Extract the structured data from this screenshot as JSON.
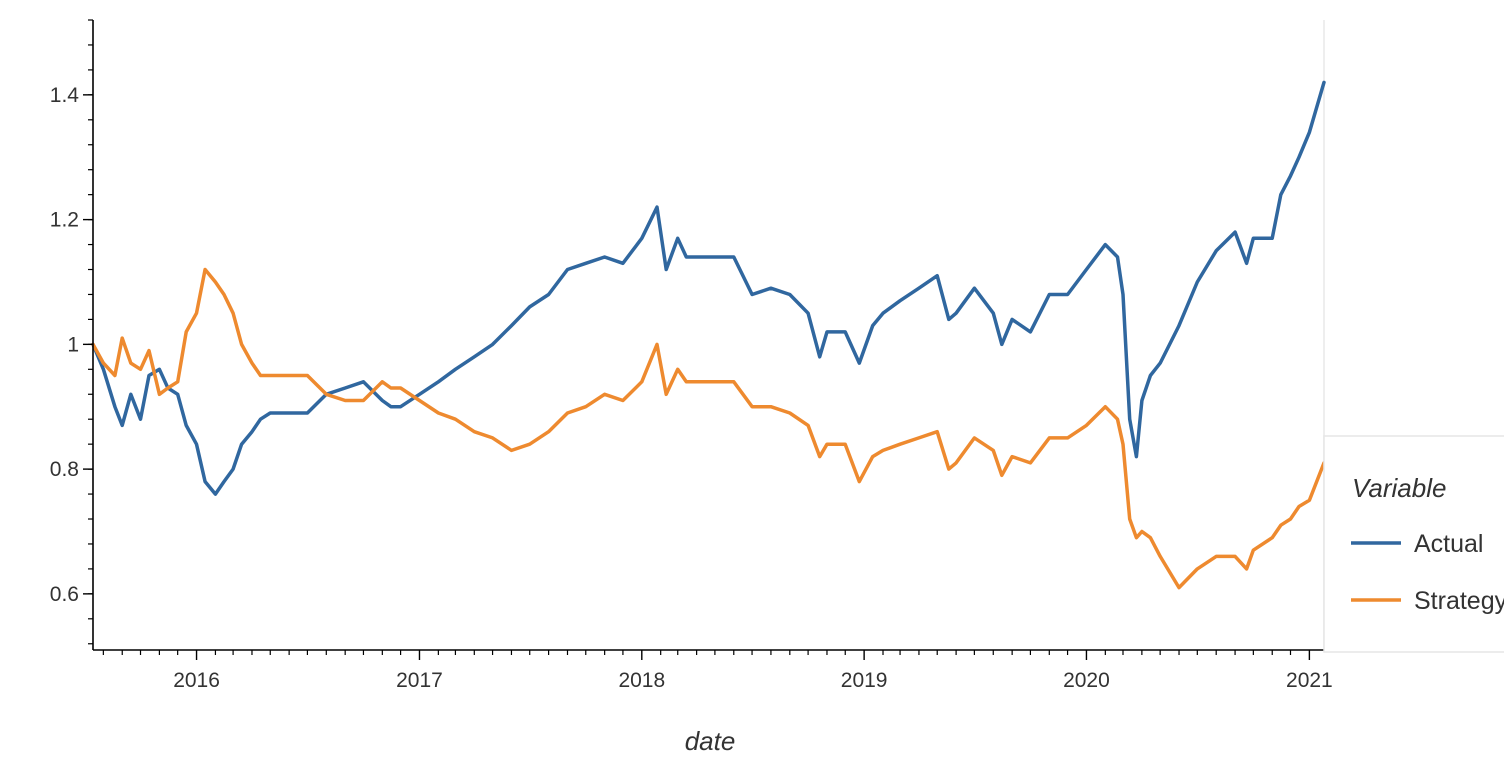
{
  "chart_data": {
    "type": "line",
    "title": "",
    "xlabel": "date",
    "ylabel": "",
    "xlim": [
      "2015-07-15",
      "2021-01-25"
    ],
    "ylim": [
      0.51,
      1.52
    ],
    "x_ticks": [
      "2016",
      "2017",
      "2018",
      "2019",
      "2020",
      "2021"
    ],
    "y_ticks": [
      "0.6",
      "0.8",
      "1",
      "1.2",
      "1.4"
    ],
    "y_tick_values": [
      0.6,
      0.8,
      1.0,
      1.2,
      1.4
    ],
    "y_minor_step": 0.04,
    "grid": false,
    "legend": {
      "title": "Variable",
      "placement": "right"
    },
    "series": [
      {
        "name": "Actual",
        "color": "#30679f",
        "points": [
          [
            "2015-07-15",
            1.0
          ],
          [
            "2015-08-01",
            0.96
          ],
          [
            "2015-08-20",
            0.9
          ],
          [
            "2015-09-01",
            0.87
          ],
          [
            "2015-09-15",
            0.92
          ],
          [
            "2015-10-01",
            0.88
          ],
          [
            "2015-10-15",
            0.95
          ],
          [
            "2015-11-01",
            0.96
          ],
          [
            "2015-11-15",
            0.93
          ],
          [
            "2015-12-01",
            0.92
          ],
          [
            "2015-12-15",
            0.87
          ],
          [
            "2016-01-01",
            0.84
          ],
          [
            "2016-01-15",
            0.78
          ],
          [
            "2016-02-01",
            0.76
          ],
          [
            "2016-02-15",
            0.78
          ],
          [
            "2016-03-01",
            0.8
          ],
          [
            "2016-03-15",
            0.84
          ],
          [
            "2016-04-01",
            0.86
          ],
          [
            "2016-04-15",
            0.88
          ],
          [
            "2016-05-01",
            0.89
          ],
          [
            "2016-06-01",
            0.89
          ],
          [
            "2016-07-01",
            0.89
          ],
          [
            "2016-08-01",
            0.92
          ],
          [
            "2016-09-01",
            0.93
          ],
          [
            "2016-10-01",
            0.94
          ],
          [
            "2016-11-01",
            0.91
          ],
          [
            "2016-11-15",
            0.9
          ],
          [
            "2016-12-01",
            0.9
          ],
          [
            "2017-01-01",
            0.92
          ],
          [
            "2017-02-01",
            0.94
          ],
          [
            "2017-03-01",
            0.96
          ],
          [
            "2017-04-01",
            0.98
          ],
          [
            "2017-05-01",
            1.0
          ],
          [
            "2017-06-01",
            1.03
          ],
          [
            "2017-07-01",
            1.06
          ],
          [
            "2017-08-01",
            1.08
          ],
          [
            "2017-09-01",
            1.12
          ],
          [
            "2017-10-01",
            1.13
          ],
          [
            "2017-11-01",
            1.14
          ],
          [
            "2017-12-01",
            1.13
          ],
          [
            "2018-01-01",
            1.17
          ],
          [
            "2018-01-26",
            1.22
          ],
          [
            "2018-02-10",
            1.12
          ],
          [
            "2018-03-01",
            1.17
          ],
          [
            "2018-03-15",
            1.14
          ],
          [
            "2018-04-01",
            1.14
          ],
          [
            "2018-05-01",
            1.14
          ],
          [
            "2018-06-01",
            1.14
          ],
          [
            "2018-07-01",
            1.08
          ],
          [
            "2018-08-01",
            1.09
          ],
          [
            "2018-09-01",
            1.08
          ],
          [
            "2018-10-01",
            1.05
          ],
          [
            "2018-10-20",
            0.98
          ],
          [
            "2018-11-01",
            1.02
          ],
          [
            "2018-12-01",
            1.02
          ],
          [
            "2018-12-24",
            0.97
          ],
          [
            "2019-01-15",
            1.03
          ],
          [
            "2019-02-01",
            1.05
          ],
          [
            "2019-03-01",
            1.07
          ],
          [
            "2019-04-01",
            1.09
          ],
          [
            "2019-05-01",
            1.11
          ],
          [
            "2019-05-20",
            1.04
          ],
          [
            "2019-06-01",
            1.05
          ],
          [
            "2019-07-01",
            1.09
          ],
          [
            "2019-08-01",
            1.05
          ],
          [
            "2019-08-15",
            1.0
          ],
          [
            "2019-09-01",
            1.04
          ],
          [
            "2019-10-01",
            1.02
          ],
          [
            "2019-11-01",
            1.08
          ],
          [
            "2019-12-01",
            1.08
          ],
          [
            "2020-01-01",
            1.12
          ],
          [
            "2020-02-01",
            1.16
          ],
          [
            "2020-02-21",
            1.14
          ],
          [
            "2020-03-01",
            1.08
          ],
          [
            "2020-03-12",
            0.88
          ],
          [
            "2020-03-23",
            0.82
          ],
          [
            "2020-04-01",
            0.91
          ],
          [
            "2020-04-15",
            0.95
          ],
          [
            "2020-05-01",
            0.97
          ],
          [
            "2020-06-01",
            1.03
          ],
          [
            "2020-07-01",
            1.1
          ],
          [
            "2020-08-01",
            1.15
          ],
          [
            "2020-09-01",
            1.18
          ],
          [
            "2020-09-20",
            1.13
          ],
          [
            "2020-10-01",
            1.17
          ],
          [
            "2020-11-01",
            1.17
          ],
          [
            "2020-11-15",
            1.24
          ],
          [
            "2020-12-01",
            1.27
          ],
          [
            "2020-12-15",
            1.3
          ],
          [
            "2021-01-01",
            1.34
          ],
          [
            "2021-01-25",
            1.42
          ]
        ]
      },
      {
        "name": "Strategy",
        "color": "#ee8a2f",
        "points": [
          [
            "2015-07-15",
            1.0
          ],
          [
            "2015-08-01",
            0.97
          ],
          [
            "2015-08-20",
            0.95
          ],
          [
            "2015-09-01",
            1.01
          ],
          [
            "2015-09-15",
            0.97
          ],
          [
            "2015-10-01",
            0.96
          ],
          [
            "2015-10-15",
            0.99
          ],
          [
            "2015-11-01",
            0.92
          ],
          [
            "2015-11-15",
            0.93
          ],
          [
            "2015-12-01",
            0.94
          ],
          [
            "2015-12-15",
            1.02
          ],
          [
            "2016-01-01",
            1.05
          ],
          [
            "2016-01-15",
            1.12
          ],
          [
            "2016-02-01",
            1.1
          ],
          [
            "2016-02-15",
            1.08
          ],
          [
            "2016-03-01",
            1.05
          ],
          [
            "2016-03-15",
            1.0
          ],
          [
            "2016-04-01",
            0.97
          ],
          [
            "2016-04-15",
            0.95
          ],
          [
            "2016-05-01",
            0.95
          ],
          [
            "2016-06-01",
            0.95
          ],
          [
            "2016-07-01",
            0.95
          ],
          [
            "2016-08-01",
            0.92
          ],
          [
            "2016-09-01",
            0.91
          ],
          [
            "2016-10-01",
            0.91
          ],
          [
            "2016-11-01",
            0.94
          ],
          [
            "2016-11-15",
            0.93
          ],
          [
            "2016-12-01",
            0.93
          ],
          [
            "2017-01-01",
            0.91
          ],
          [
            "2017-02-01",
            0.89
          ],
          [
            "2017-03-01",
            0.88
          ],
          [
            "2017-04-01",
            0.86
          ],
          [
            "2017-05-01",
            0.85
          ],
          [
            "2017-06-01",
            0.83
          ],
          [
            "2017-07-01",
            0.84
          ],
          [
            "2017-08-01",
            0.86
          ],
          [
            "2017-09-01",
            0.89
          ],
          [
            "2017-10-01",
            0.9
          ],
          [
            "2017-11-01",
            0.92
          ],
          [
            "2017-12-01",
            0.91
          ],
          [
            "2018-01-01",
            0.94
          ],
          [
            "2018-01-26",
            1.0
          ],
          [
            "2018-02-10",
            0.92
          ],
          [
            "2018-03-01",
            0.96
          ],
          [
            "2018-03-15",
            0.94
          ],
          [
            "2018-04-01",
            0.94
          ],
          [
            "2018-05-01",
            0.94
          ],
          [
            "2018-06-01",
            0.94
          ],
          [
            "2018-07-01",
            0.9
          ],
          [
            "2018-08-01",
            0.9
          ],
          [
            "2018-09-01",
            0.89
          ],
          [
            "2018-10-01",
            0.87
          ],
          [
            "2018-10-20",
            0.82
          ],
          [
            "2018-11-01",
            0.84
          ],
          [
            "2018-12-01",
            0.84
          ],
          [
            "2018-12-24",
            0.78
          ],
          [
            "2019-01-15",
            0.82
          ],
          [
            "2019-02-01",
            0.83
          ],
          [
            "2019-03-01",
            0.84
          ],
          [
            "2019-04-01",
            0.85
          ],
          [
            "2019-05-01",
            0.86
          ],
          [
            "2019-05-20",
            0.8
          ],
          [
            "2019-06-01",
            0.81
          ],
          [
            "2019-07-01",
            0.85
          ],
          [
            "2019-08-01",
            0.83
          ],
          [
            "2019-08-15",
            0.79
          ],
          [
            "2019-09-01",
            0.82
          ],
          [
            "2019-10-01",
            0.81
          ],
          [
            "2019-11-01",
            0.85
          ],
          [
            "2019-12-01",
            0.85
          ],
          [
            "2020-01-01",
            0.87
          ],
          [
            "2020-02-01",
            0.9
          ],
          [
            "2020-02-21",
            0.88
          ],
          [
            "2020-03-01",
            0.84
          ],
          [
            "2020-03-12",
            0.72
          ],
          [
            "2020-03-23",
            0.69
          ],
          [
            "2020-04-01",
            0.7
          ],
          [
            "2020-04-15",
            0.69
          ],
          [
            "2020-05-01",
            0.66
          ],
          [
            "2020-06-01",
            0.61
          ],
          [
            "2020-07-01",
            0.64
          ],
          [
            "2020-08-01",
            0.66
          ],
          [
            "2020-09-01",
            0.66
          ],
          [
            "2020-09-20",
            0.64
          ],
          [
            "2020-10-01",
            0.67
          ],
          [
            "2020-11-01",
            0.69
          ],
          [
            "2020-11-15",
            0.71
          ],
          [
            "2020-12-01",
            0.72
          ],
          [
            "2020-12-15",
            0.74
          ],
          [
            "2021-01-01",
            0.75
          ],
          [
            "2021-01-25",
            0.81
          ]
        ]
      }
    ]
  }
}
